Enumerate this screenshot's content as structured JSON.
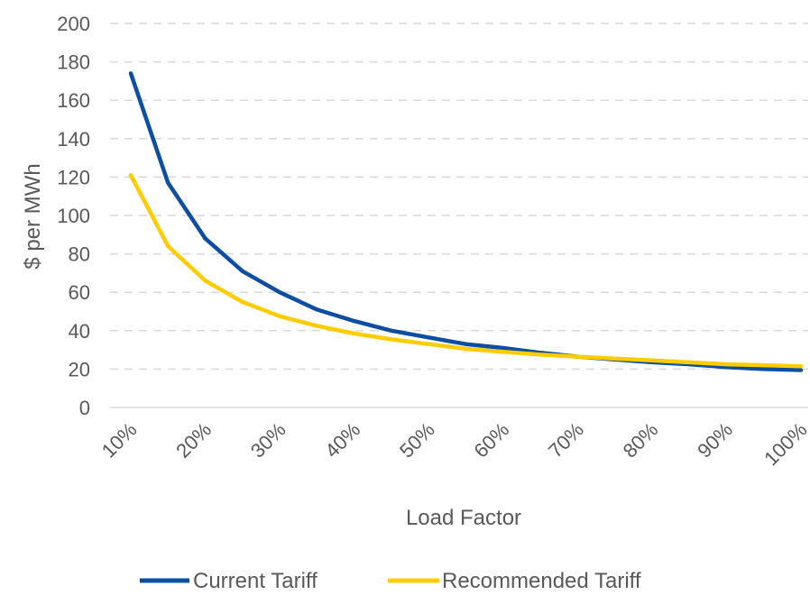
{
  "chart_data": {
    "type": "line",
    "title": "",
    "xlabel": "Load Factor",
    "ylabel": "$ per MWh",
    "ylim": [
      0,
      200
    ],
    "y_ticks": [
      "0",
      "20",
      "40",
      "60",
      "80",
      "100",
      "120",
      "140",
      "160",
      "180",
      "200"
    ],
    "x_ticks": [
      "10%",
      "20%",
      "30%",
      "40%",
      "50%",
      "60%",
      "70%",
      "80%",
      "90%",
      "100%"
    ],
    "grid": "horizontal dashed",
    "legend_position": "bottom",
    "x": [
      10,
      15,
      20,
      25,
      30,
      35,
      40,
      45,
      50,
      55,
      60,
      65,
      70,
      75,
      80,
      85,
      90,
      95,
      100
    ],
    "series": [
      {
        "name": "Current Tariff",
        "color": "#0B4EA2",
        "values": [
          174,
          117,
          88,
          71,
          60,
          51,
          45,
          40,
          36.5,
          33,
          31,
          28.5,
          26.5,
          25,
          23.5,
          22.5,
          21,
          20,
          19.5
        ]
      },
      {
        "name": "Recommended Tariff",
        "color": "#FFCC00",
        "values": [
          121,
          84,
          66,
          55,
          47.5,
          42.5,
          38.5,
          35.5,
          33,
          30.5,
          29,
          27.5,
          26.5,
          25.5,
          24.5,
          23.5,
          22.5,
          22,
          21.5
        ]
      }
    ]
  }
}
